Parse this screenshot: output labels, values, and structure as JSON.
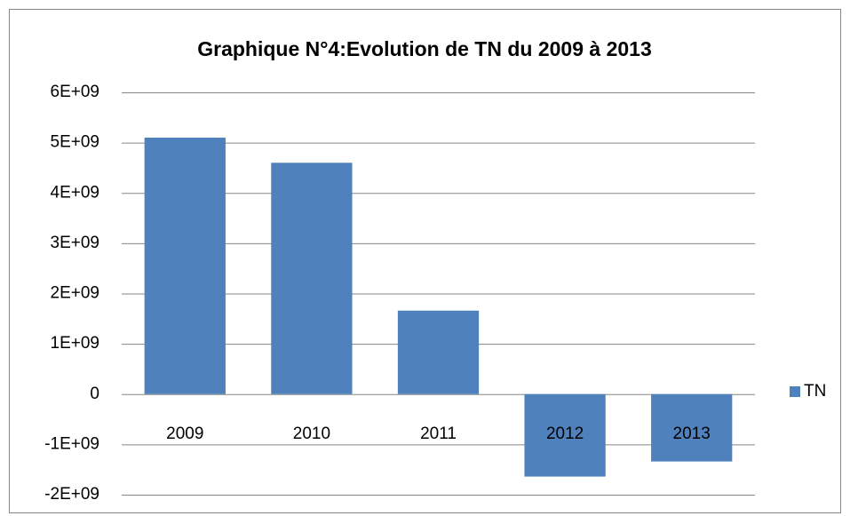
{
  "chart_data": {
    "type": "bar",
    "title": "Graphique N°4:Evolution de TN du 2009 à 2013",
    "categories": [
      "2009",
      "2010",
      "2011",
      "2012",
      "2013"
    ],
    "series": [
      {
        "name": "TN",
        "color": "#4f81bd",
        "values": [
          5100000000,
          4600000000,
          1660000000,
          -1640000000,
          -1340000000
        ]
      }
    ],
    "ylim": [
      -2000000000,
      6000000000
    ],
    "yticks": [
      {
        "value": -2000000000,
        "label": "-2E+09"
      },
      {
        "value": -1000000000,
        "label": "-1E+09"
      },
      0,
      {
        "value": 1000000000,
        "label": "1E+09"
      },
      {
        "value": 2000000000,
        "label": "2E+09"
      },
      {
        "value": 3000000000,
        "label": "3E+09"
      },
      {
        "value": 4000000000,
        "label": "4E+09"
      },
      {
        "value": 5000000000,
        "label": "5E+09"
      },
      {
        "value": 6000000000,
        "label": "6E+09"
      }
    ],
    "grid": true,
    "legend": "right"
  }
}
